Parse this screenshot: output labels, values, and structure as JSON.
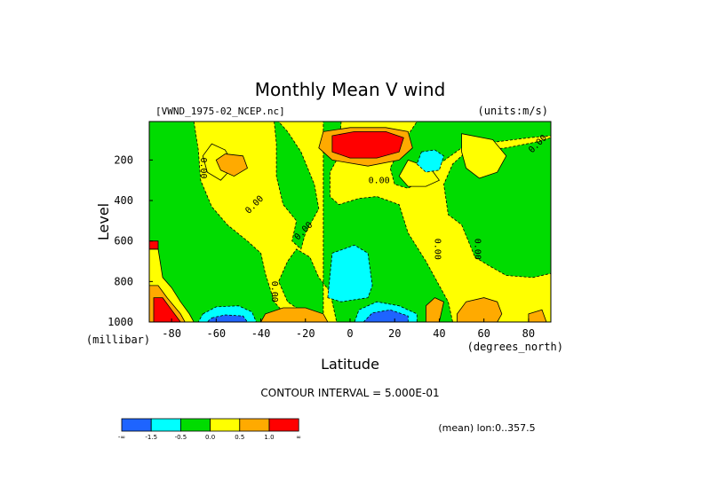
{
  "chart_data": {
    "type": "heatmap",
    "title": "Monthly Mean V wind",
    "dataset_label": "[VWND_1975-02_NCEP.nc]",
    "units_label": "(units:m/s)",
    "xlabel": "Latitude",
    "ylabel": "Level",
    "x_units": "(degrees_north)",
    "y_units": "(millibar)",
    "xlim": [
      -90,
      90
    ],
    "ylim": [
      1000,
      10
    ],
    "x_ticks": [
      -80,
      -60,
      -40,
      -20,
      0,
      20,
      40,
      60,
      80
    ],
    "y_ticks": [
      1000,
      800,
      600,
      400,
      200
    ],
    "contour_interval_text": "CONTOUR INTERVAL = 5.000E-01",
    "subset_text": "(mean) lon:0..357.5",
    "colorbar": {
      "colors": [
        "#1e64ff",
        "#00ffff",
        "#00dc00",
        "#ffff00",
        "#ffaa00",
        "#ff0000"
      ],
      "labels": [
        "-∞",
        "-1.5",
        "-0.5",
        "0.0",
        "0.5",
        "1.0",
        "∞"
      ]
    },
    "contour_labels": [
      {
        "text": "0.00",
        "x": -67,
        "y": 240,
        "rotation": 90
      },
      {
        "text": "0.00",
        "x": -42,
        "y": 430,
        "rotation": -45
      },
      {
        "text": "0.00",
        "x": -35,
        "y": 850,
        "rotation": 90
      },
      {
        "text": "0.00",
        "x": -20,
        "y": 560,
        "rotation": -45
      },
      {
        "text": "0.00",
        "x": 13,
        "y": 315,
        "rotation": 0
      },
      {
        "text": "0.00",
        "x": 38,
        "y": 640,
        "rotation": 90
      },
      {
        "text": "0.00",
        "x": 56,
        "y": 640,
        "rotation": 90
      },
      {
        "text": "0.00",
        "x": 85,
        "y": 130,
        "rotation": -45
      }
    ],
    "regions": [
      {
        "level": 0,
        "points": [
          [
            -90,
            10
          ],
          [
            90,
            10
          ],
          [
            90,
            1000
          ],
          [
            -90,
            1000
          ]
        ]
      },
      {
        "level": -1,
        "points": [
          [
            -90,
            10
          ],
          [
            -70,
            10
          ],
          [
            -68,
            150
          ],
          [
            -67,
            300
          ],
          [
            -62,
            430
          ],
          [
            -55,
            520
          ],
          [
            -46,
            600
          ],
          [
            -40,
            660
          ],
          [
            -38,
            760
          ],
          [
            -34,
            900
          ],
          [
            -30,
            950
          ],
          [
            -25,
            1000
          ],
          [
            -90,
            1000
          ]
        ]
      },
      {
        "level": -1,
        "points": [
          [
            -56,
            10
          ],
          [
            -34,
            10
          ],
          [
            -33,
            120
          ],
          [
            -33,
            280
          ],
          [
            -30,
            420
          ],
          [
            -24,
            500
          ],
          [
            -26,
            600
          ],
          [
            -22,
            640
          ],
          [
            -20,
            560
          ],
          [
            -14,
            440
          ],
          [
            -16,
            320
          ],
          [
            -22,
            160
          ],
          [
            -28,
            60
          ],
          [
            -32,
            10
          ]
        ]
      },
      {
        "level": -1,
        "points": [
          [
            -12,
            10
          ],
          [
            -4,
            10
          ],
          [
            -5,
            180
          ],
          [
            -9,
            260
          ],
          [
            -9,
            380
          ],
          [
            -5,
            420
          ],
          [
            4,
            390
          ],
          [
            12,
            380
          ],
          [
            22,
            420
          ],
          [
            26,
            560
          ],
          [
            34,
            700
          ],
          [
            40,
            820
          ],
          [
            44,
            900
          ],
          [
            46,
            1000
          ],
          [
            -6,
            1000
          ],
          [
            -9,
            850
          ],
          [
            -14,
            780
          ],
          [
            -18,
            680
          ],
          [
            -24,
            640
          ],
          [
            -28,
            700
          ],
          [
            -32,
            800
          ],
          [
            -28,
            900
          ],
          [
            -20,
            960
          ],
          [
            -12,
            1000
          ]
        ]
      },
      {
        "level": -1,
        "points": [
          [
            30,
            10
          ],
          [
            90,
            10
          ],
          [
            90,
            760
          ],
          [
            82,
            780
          ],
          [
            70,
            770
          ],
          [
            62,
            720
          ],
          [
            56,
            680
          ],
          [
            50,
            520
          ],
          [
            44,
            470
          ],
          [
            42,
            320
          ],
          [
            46,
            220
          ],
          [
            52,
            160
          ],
          [
            70,
            140
          ],
          [
            84,
            110
          ],
          [
            90,
            90
          ],
          [
            90,
            10
          ]
        ]
      },
      {
        "level": -1,
        "points": [
          [
            30,
            10
          ],
          [
            90,
            10
          ],
          [
            90,
            80
          ],
          [
            80,
            90
          ],
          [
            66,
            110
          ],
          [
            50,
            140
          ],
          [
            40,
            220
          ],
          [
            32,
            300
          ],
          [
            26,
            340
          ],
          [
            20,
            320
          ],
          [
            18,
            240
          ],
          [
            24,
            110
          ]
        ]
      },
      {
        "level": 0,
        "points": [
          [
            26,
            200
          ],
          [
            36,
            240
          ],
          [
            40,
            300
          ],
          [
            34,
            330
          ],
          [
            26,
            330
          ],
          [
            22,
            280
          ]
        ]
      },
      {
        "level": 0,
        "points": [
          [
            50,
            70
          ],
          [
            64,
            100
          ],
          [
            70,
            180
          ],
          [
            66,
            260
          ],
          [
            58,
            290
          ],
          [
            52,
            240
          ],
          [
            50,
            160
          ]
        ]
      },
      {
        "level": 0,
        "points": [
          [
            -62,
            120
          ],
          [
            -56,
            150
          ],
          [
            -52,
            230
          ],
          [
            -58,
            300
          ],
          [
            -64,
            260
          ],
          [
            -66,
            180
          ]
        ]
      },
      {
        "level": 1,
        "points": [
          [
            -56,
            170
          ],
          [
            -48,
            180
          ],
          [
            -46,
            240
          ],
          [
            -52,
            280
          ],
          [
            -58,
            250
          ],
          [
            -60,
            200
          ]
        ]
      },
      {
        "level": 1,
        "points": [
          [
            -12,
            60
          ],
          [
            0,
            40
          ],
          [
            16,
            40
          ],
          [
            26,
            60
          ],
          [
            28,
            140
          ],
          [
            22,
            200
          ],
          [
            8,
            230
          ],
          [
            -8,
            200
          ],
          [
            -14,
            140
          ]
        ]
      },
      {
        "level": 2,
        "points": [
          [
            -8,
            80
          ],
          [
            2,
            60
          ],
          [
            16,
            60
          ],
          [
            24,
            90
          ],
          [
            22,
            160
          ],
          [
            12,
            190
          ],
          [
            0,
            190
          ],
          [
            -8,
            160
          ]
        ]
      },
      {
        "level": -2,
        "points": [
          [
            32,
            160
          ],
          [
            38,
            150
          ],
          [
            42,
            180
          ],
          [
            40,
            250
          ],
          [
            34,
            260
          ],
          [
            30,
            220
          ]
        ]
      },
      {
        "level": 0,
        "points": [
          [
            -90,
            640
          ],
          [
            -86,
            640
          ],
          [
            -84,
            780
          ],
          [
            -80,
            830
          ],
          [
            -76,
            900
          ],
          [
            -72,
            960
          ],
          [
            -70,
            1000
          ],
          [
            -90,
            1000
          ]
        ]
      },
      {
        "level": 1,
        "points": [
          [
            -90,
            820
          ],
          [
            -86,
            820
          ],
          [
            -82,
            880
          ],
          [
            -76,
            960
          ],
          [
            -74,
            1000
          ],
          [
            -90,
            1000
          ]
        ]
      },
      {
        "level": 2,
        "points": [
          [
            -88,
            880
          ],
          [
            -84,
            880
          ],
          [
            -80,
            940
          ],
          [
            -76,
            1000
          ],
          [
            -88,
            1000
          ]
        ]
      },
      {
        "level": -2,
        "points": [
          [
            -66,
            960
          ],
          [
            -60,
            925
          ],
          [
            -50,
            920
          ],
          [
            -44,
            950
          ],
          [
            -42,
            1000
          ],
          [
            -68,
            1000
          ]
        ]
      },
      {
        "level": -3,
        "points": [
          [
            -62,
            980
          ],
          [
            -56,
            965
          ],
          [
            -48,
            970
          ],
          [
            -46,
            1000
          ],
          [
            -64,
            1000
          ]
        ]
      },
      {
        "level": 1,
        "points": [
          [
            -38,
            960
          ],
          [
            -30,
            930
          ],
          [
            -20,
            930
          ],
          [
            -12,
            960
          ],
          [
            -10,
            1000
          ],
          [
            -40,
            1000
          ]
        ]
      },
      {
        "level": -2,
        "points": [
          [
            -10,
            880
          ],
          [
            -8,
            660
          ],
          [
            2,
            620
          ],
          [
            8,
            660
          ],
          [
            10,
            820
          ],
          [
            8,
            880
          ],
          [
            -4,
            900
          ]
        ]
      },
      {
        "level": -2,
        "points": [
          [
            2,
            1000
          ],
          [
            4,
            940
          ],
          [
            12,
            900
          ],
          [
            22,
            920
          ],
          [
            30,
            960
          ],
          [
            30,
            1000
          ]
        ]
      },
      {
        "level": -3,
        "points": [
          [
            6,
            1000
          ],
          [
            10,
            955
          ],
          [
            18,
            940
          ],
          [
            26,
            970
          ],
          [
            26,
            1000
          ]
        ]
      },
      {
        "level": 1,
        "points": [
          [
            34,
            920
          ],
          [
            38,
            880
          ],
          [
            42,
            900
          ],
          [
            40,
            1000
          ],
          [
            34,
            1000
          ]
        ]
      },
      {
        "level": 1,
        "points": [
          [
            48,
            960
          ],
          [
            52,
            900
          ],
          [
            60,
            880
          ],
          [
            66,
            900
          ],
          [
            68,
            960
          ],
          [
            66,
            1000
          ],
          [
            48,
            1000
          ]
        ]
      },
      {
        "level": 1,
        "points": [
          [
            80,
            960
          ],
          [
            86,
            940
          ],
          [
            88,
            1000
          ],
          [
            80,
            1000
          ]
        ]
      },
      {
        "level": 2,
        "points": [
          [
            -90,
            600
          ],
          [
            -86,
            600
          ],
          [
            -86,
            640
          ],
          [
            -90,
            640
          ]
        ]
      }
    ]
  }
}
